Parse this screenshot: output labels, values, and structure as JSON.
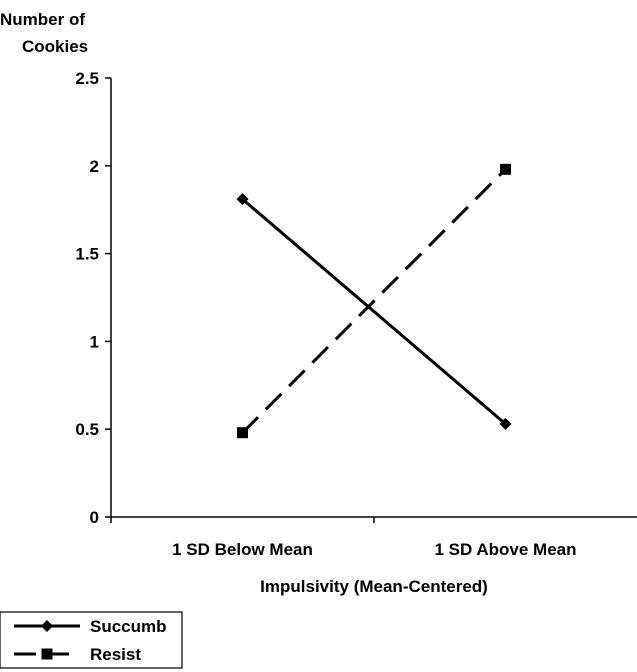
{
  "chart_data": {
    "type": "line",
    "title": "",
    "ylabel": "Number of Cookies",
    "ylabel_lines": [
      "Number of",
      "Cookies"
    ],
    "xlabel": "Impulsivity (Mean-Centered)",
    "categories": [
      "1 SD Below Mean",
      "1 SD Above Mean"
    ],
    "ylim": [
      0,
      2.5
    ],
    "yticks": [
      0,
      0.5,
      1,
      1.5,
      2,
      2.5
    ],
    "ytick_labels": [
      "0",
      "0.5",
      "1",
      "1.5",
      "2",
      "2.5"
    ],
    "grid": false,
    "legend_position": "bottom-left",
    "series": [
      {
        "name": "Succumb",
        "values": [
          1.81,
          0.53
        ],
        "marker": "diamond",
        "line_style": "solid",
        "color": "#000000"
      },
      {
        "name": "Resist",
        "values": [
          0.48,
          1.98
        ],
        "marker": "square",
        "line_style": "dashed",
        "color": "#000000"
      }
    ]
  }
}
